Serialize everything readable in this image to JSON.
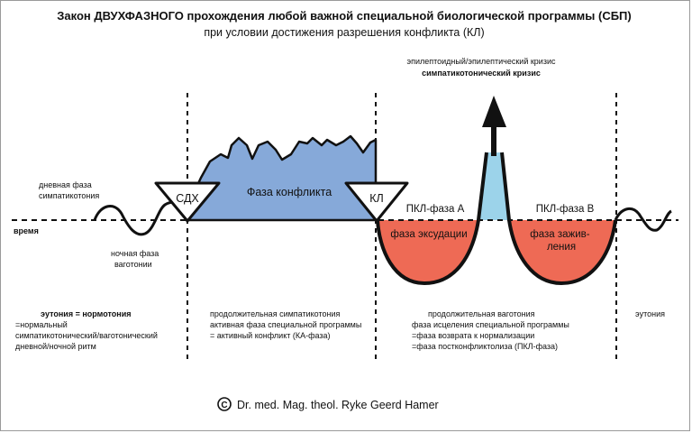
{
  "title": "Закон ДВУХФАЗНОГО прохождения любой важной специальной биологической программы (СБП)",
  "subtitle": "при условии достижения разрешения конфликта (КЛ)",
  "time_axis_label": "время",
  "day_phase": [
    "дневная фаза",
    "симпатикотония"
  ],
  "night_phase": [
    "ночная фаза",
    "ваготонии"
  ],
  "crisis": {
    "line1": "эпилептоидный/эпилептический кризис",
    "line2": "симпатикотонический кризис"
  },
  "markers": {
    "sdh": "СДХ",
    "kl": "КЛ"
  },
  "phases": {
    "conflict": "Фаза конфликта",
    "pcl_a": "ПКЛ-фаза А",
    "pcl_b": "ПКЛ-фаза В",
    "exudation": "фаза эксудации",
    "healing": [
      "фаза зажив-",
      "ления"
    ]
  },
  "bottom": {
    "eutonia_left": {
      "heading": "эутония = нормотония",
      "lines": [
        "=нормальный",
        "симпатикотонический/ваготонический",
        "дневной/ночной ритм"
      ]
    },
    "sympathicotonia": {
      "lines": [
        "продолжительная симпатикотония",
        "активная фаза специальной программы",
        "= активный конфликт (КА-фаза)"
      ]
    },
    "vagotonia": {
      "lines": [
        "продолжительная ваготония",
        "фаза исцеления специальной программы",
        "=фаза возврата к нормализации",
        "=фаза постконфликтолиза (ПКЛ-фаза)"
      ]
    },
    "eutonia_right": "эутония"
  },
  "copyright": {
    "symbol": "C",
    "text": "Dr. med. Mag. theol. Ryke Geerd Hamer"
  },
  "colors": {
    "conflict_fill": "#86a9d9",
    "red_fill": "#ee6a55",
    "crisis_fill": "#9cd3ea",
    "line": "#111111"
  }
}
